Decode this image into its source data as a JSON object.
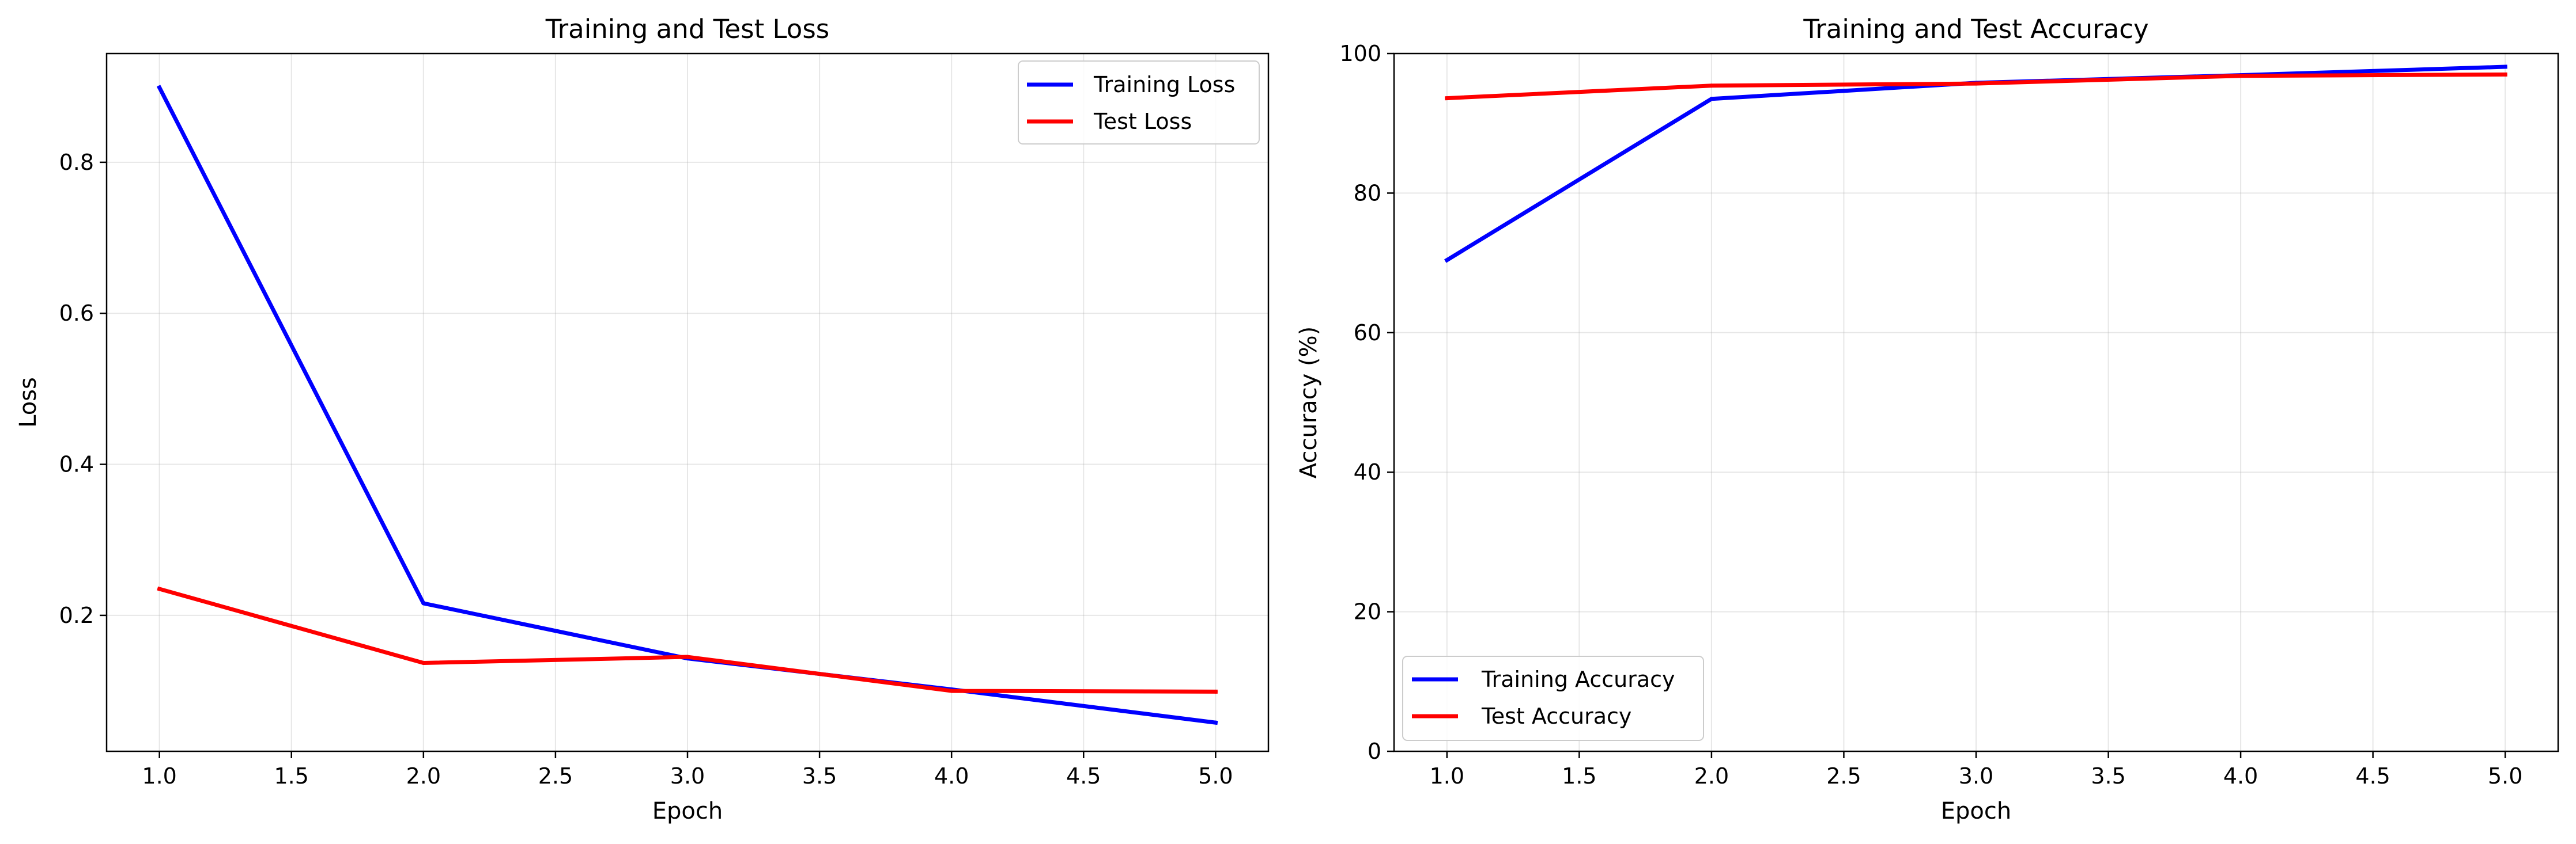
{
  "chart_data": [
    {
      "type": "line",
      "title": "Training and Test Loss",
      "xlabel": "Epoch",
      "ylabel": "Loss",
      "x": [
        1,
        2,
        3,
        4,
        5
      ],
      "xlim": [
        0.8,
        5.2
      ],
      "ylim": [
        0.02,
        0.944
      ],
      "xticks": [
        1.0,
        1.5,
        2.0,
        2.5,
        3.0,
        3.5,
        4.0,
        4.5,
        5.0
      ],
      "xtick_labels": [
        "1.0",
        "1.5",
        "2.0",
        "2.5",
        "3.0",
        "3.5",
        "4.0",
        "4.5",
        "5.0"
      ],
      "yticks": [
        0.2,
        0.4,
        0.6,
        0.8
      ],
      "ytick_labels": [
        "0.2",
        "0.4",
        "0.6",
        "0.8"
      ],
      "grid": true,
      "legend_position": "top-right",
      "series": [
        {
          "name": "Training Loss",
          "color": "#0000ff",
          "values": [
            0.899,
            0.216,
            0.143,
            0.102,
            0.058
          ]
        },
        {
          "name": "Test Loss",
          "color": "#ff0000",
          "values": [
            0.235,
            0.137,
            0.145,
            0.1,
            0.099
          ]
        }
      ]
    },
    {
      "type": "line",
      "title": "Training and Test Accuracy",
      "xlabel": "Epoch",
      "ylabel": "Accuracy (%)",
      "x": [
        1,
        2,
        3,
        4,
        5
      ],
      "xlim": [
        0.8,
        5.2
      ],
      "ylim": [
        0,
        100
      ],
      "xticks": [
        1.0,
        1.5,
        2.0,
        2.5,
        3.0,
        3.5,
        4.0,
        4.5,
        5.0
      ],
      "xtick_labels": [
        "1.0",
        "1.5",
        "2.0",
        "2.5",
        "3.0",
        "3.5",
        "4.0",
        "4.5",
        "5.0"
      ],
      "yticks": [
        0,
        20,
        40,
        60,
        80,
        100
      ],
      "ytick_labels": [
        "0",
        "20",
        "40",
        "60",
        "80",
        "100"
      ],
      "grid": true,
      "legend_position": "bottom-left",
      "series": [
        {
          "name": "Training Accuracy",
          "color": "#0000ff",
          "values": [
            70.4,
            93.5,
            95.8,
            96.9,
            98.1
          ]
        },
        {
          "name": "Test Accuracy",
          "color": "#ff0000",
          "values": [
            93.6,
            95.4,
            95.7,
            96.8,
            97.0
          ]
        }
      ]
    }
  ]
}
